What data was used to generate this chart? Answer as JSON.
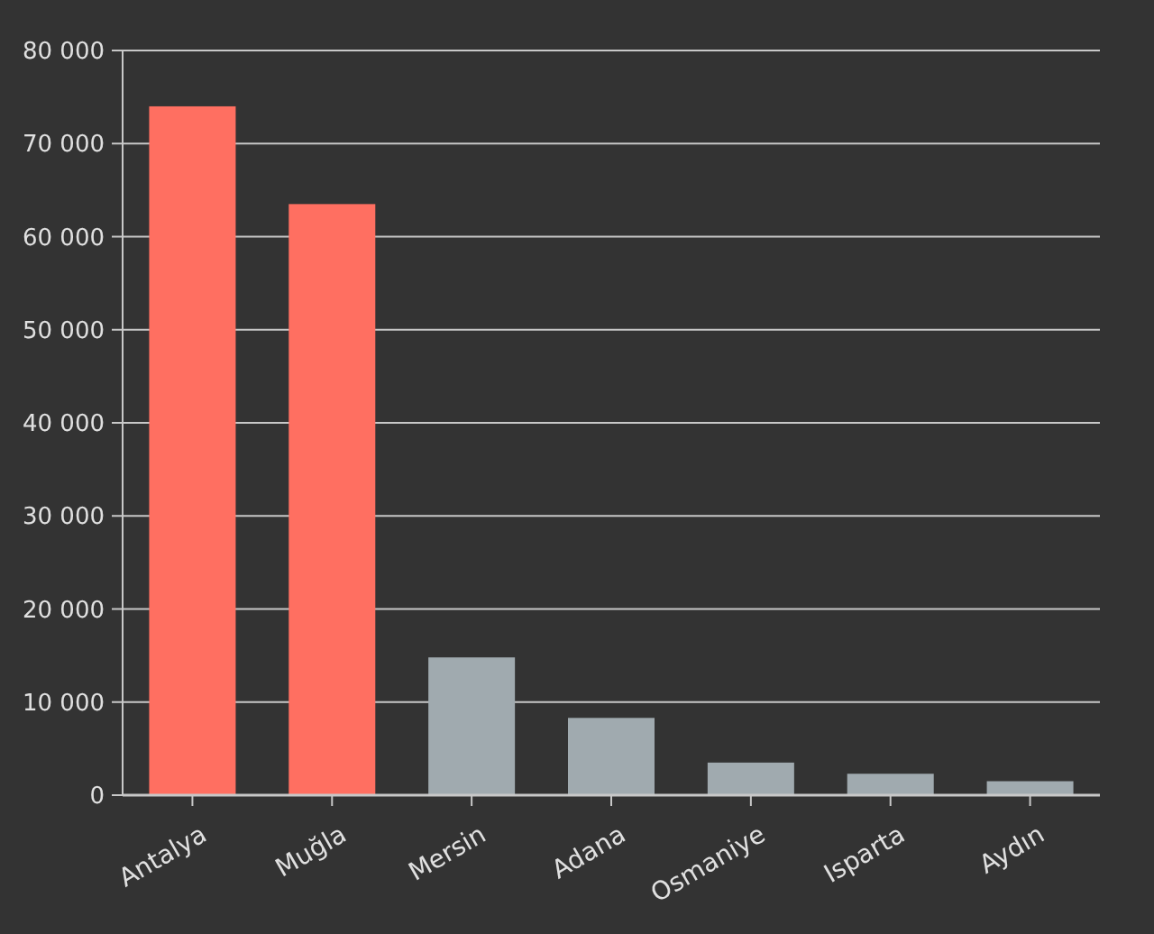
{
  "chart_data": {
    "type": "bar",
    "categories": [
      "Antalya",
      "Muğla",
      "Mersin",
      "Adana",
      "Osmaniye",
      "Isparta",
      "Aydın"
    ],
    "values": [
      74000,
      63500,
      14800,
      8300,
      3500,
      2300,
      1500
    ],
    "colors": [
      "#ff6f61",
      "#ff6f61",
      "#a0aaaf",
      "#a0aaaf",
      "#a0aaaf",
      "#a0aaaf",
      "#a0aaaf"
    ],
    "ylim": [
      0,
      80000
    ],
    "yticks": [
      {
        "value": 0,
        "label": "0"
      },
      {
        "value": 10000,
        "label": "10 000"
      },
      {
        "value": 20000,
        "label": "20 000"
      },
      {
        "value": 30000,
        "label": "30 000"
      },
      {
        "value": 40000,
        "label": "40 000"
      },
      {
        "value": 50000,
        "label": "50 000"
      },
      {
        "value": 60000,
        "label": "60 000"
      },
      {
        "value": 70000,
        "label": "70 000"
      },
      {
        "value": 80000,
        "label": "80 000"
      }
    ],
    "grid": "y"
  }
}
